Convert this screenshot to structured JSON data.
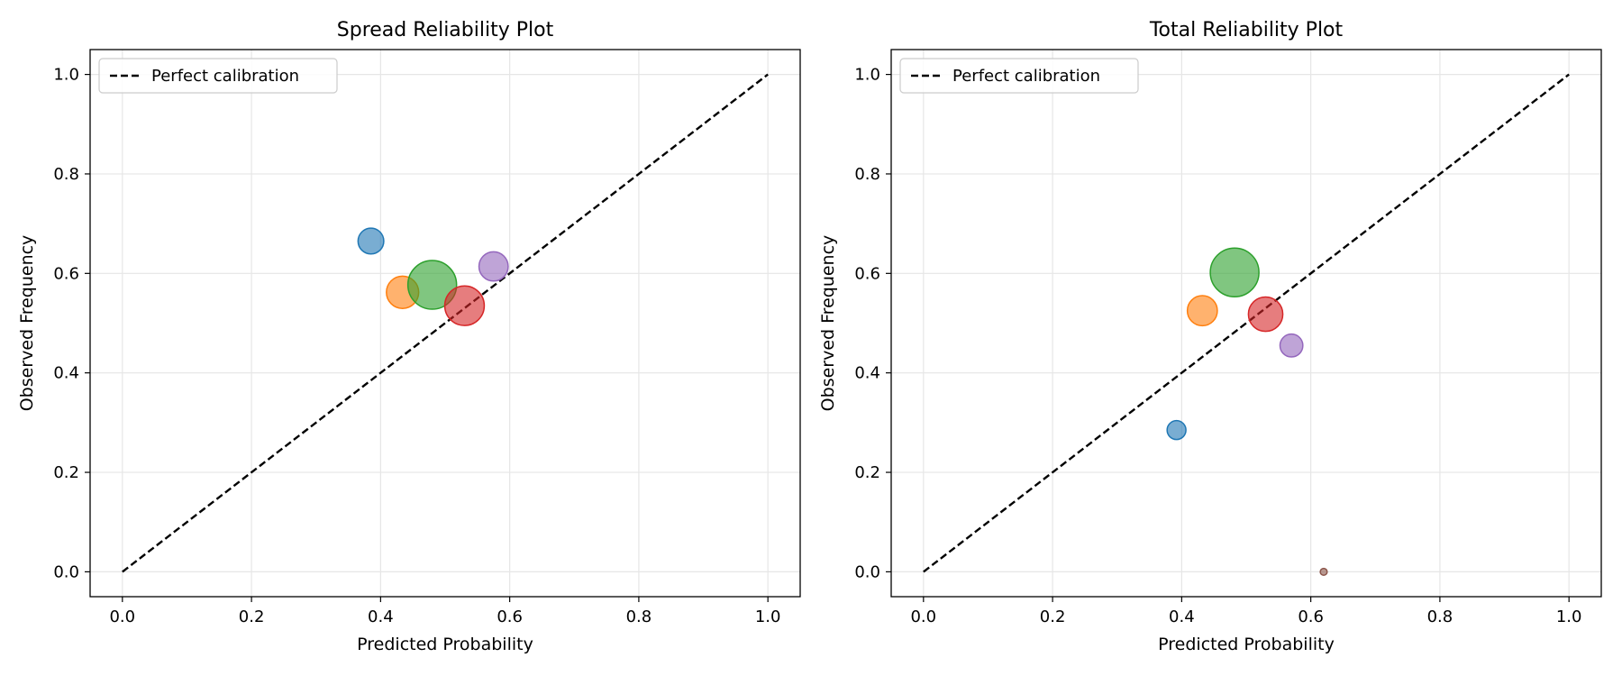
{
  "chart_data": [
    {
      "type": "scatter",
      "title": "Spread Reliability Plot",
      "xlabel": "Predicted Probability",
      "ylabel": "Observed Frequency",
      "xlim": [
        -0.05,
        1.05
      ],
      "ylim": [
        -0.05,
        1.05
      ],
      "xticks": [
        "0.0",
        "0.2",
        "0.4",
        "0.6",
        "0.8",
        "1.0"
      ],
      "yticks": [
        "0.0",
        "0.2",
        "0.4",
        "0.6",
        "0.8",
        "1.0"
      ],
      "grid": true,
      "legend": {
        "placement": "upper-left",
        "entries": [
          "Perfect calibration"
        ]
      },
      "reference_line": {
        "label": "Perfect calibration",
        "x": [
          0,
          1
        ],
        "y": [
          0,
          1
        ],
        "style": "dashed",
        "color": "#000000"
      },
      "points": [
        {
          "x": 0.385,
          "y": 0.665,
          "relative_size": 0.28,
          "color": "#1f77b4"
        },
        {
          "x": 0.434,
          "y": 0.562,
          "relative_size": 0.44,
          "color": "#ff7f0e"
        },
        {
          "x": 0.48,
          "y": 0.577,
          "relative_size": 1.0,
          "color": "#2ca02c"
        },
        {
          "x": 0.53,
          "y": 0.535,
          "relative_size": 0.66,
          "color": "#d62728"
        },
        {
          "x": 0.575,
          "y": 0.614,
          "relative_size": 0.36,
          "color": "#9467bd"
        }
      ]
    },
    {
      "type": "scatter",
      "title": "Total Reliability Plot",
      "xlabel": "Predicted Probability",
      "ylabel": "Observed Frequency",
      "xlim": [
        -0.05,
        1.05
      ],
      "ylim": [
        -0.05,
        1.05
      ],
      "xticks": [
        "0.0",
        "0.2",
        "0.4",
        "0.6",
        "0.8",
        "1.0"
      ],
      "yticks": [
        "0.0",
        "0.2",
        "0.4",
        "0.6",
        "0.8",
        "1.0"
      ],
      "grid": true,
      "legend": {
        "placement": "upper-left",
        "entries": [
          "Perfect calibration"
        ]
      },
      "reference_line": {
        "label": "Perfect calibration",
        "x": [
          0,
          1
        ],
        "y": [
          0,
          1
        ],
        "style": "dashed",
        "color": "#000000"
      },
      "points": [
        {
          "x": 0.392,
          "y": 0.285,
          "relative_size": 0.15,
          "color": "#1f77b4"
        },
        {
          "x": 0.432,
          "y": 0.525,
          "relative_size": 0.38,
          "color": "#ff7f0e"
        },
        {
          "x": 0.482,
          "y": 0.602,
          "relative_size": 1.0,
          "color": "#2ca02c"
        },
        {
          "x": 0.53,
          "y": 0.518,
          "relative_size": 0.5,
          "color": "#d62728"
        },
        {
          "x": 0.57,
          "y": 0.455,
          "relative_size": 0.22,
          "color": "#9467bd"
        },
        {
          "x": 0.62,
          "y": 0.0,
          "relative_size": 0.02,
          "color": "#8c564b"
        }
      ]
    }
  ]
}
